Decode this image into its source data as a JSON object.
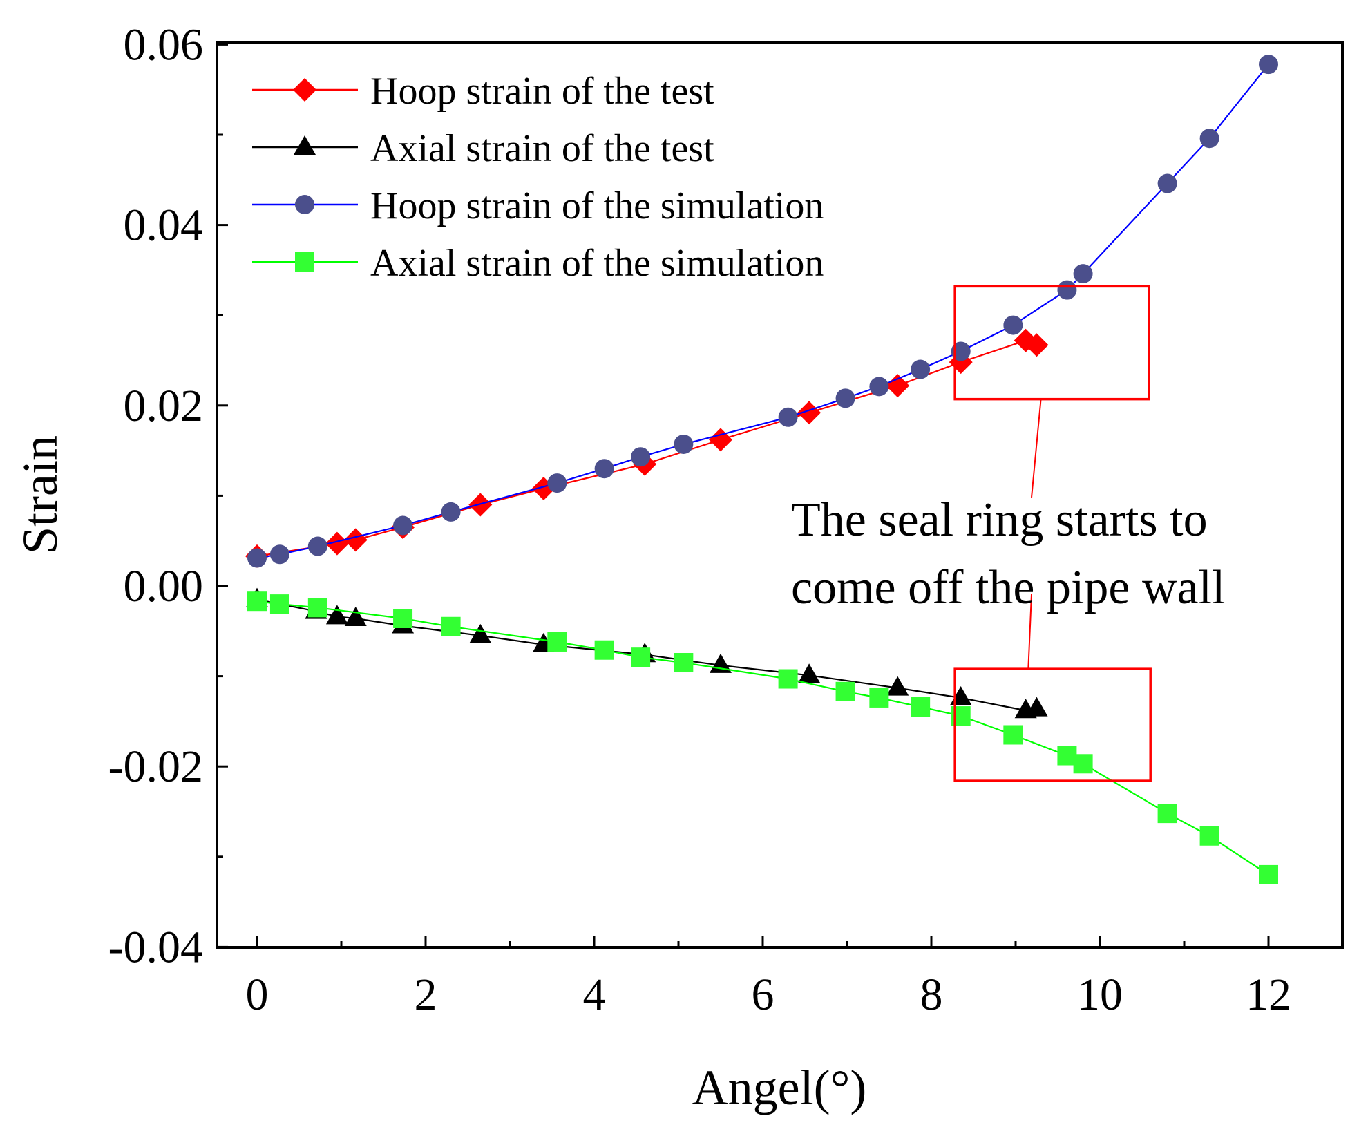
{
  "chart_data": {
    "type": "line",
    "title": "",
    "xlabel": "Angel(°)",
    "ylabel": "Strain",
    "xlim": [
      -0.5,
      13
    ],
    "ylim": [
      -0.04,
      0.06
    ],
    "xticks": [
      0,
      2,
      4,
      6,
      8,
      10,
      12
    ],
    "xtick_labels": [
      "0",
      "2",
      "4",
      "6",
      "8",
      "10",
      "12"
    ],
    "yticks": [
      -0.04,
      -0.02,
      0.0,
      0.02,
      0.04,
      0.06
    ],
    "ytick_labels": [
      "-0.04",
      "-0.02",
      "0.00",
      "0.02",
      "0.04",
      "0.06"
    ],
    "legend_position": "top-left",
    "series": [
      {
        "name": "Hoop strain of the test",
        "color": "#ff0000",
        "marker": "diamond",
        "x": [
          0,
          0.95,
          1.17,
          1.73,
          2.65,
          3.4,
          4.6,
          5.5,
          6.55,
          7.6,
          8.35,
          9.12,
          9.25
        ],
        "y": [
          0.0033,
          0.0047,
          0.0051,
          0.0065,
          0.009,
          0.0108,
          0.0135,
          0.0162,
          0.0192,
          0.0222,
          0.0248,
          0.0272,
          0.0267
        ]
      },
      {
        "name": "Axial strain of the test",
        "color": "#000000",
        "marker": "triangle",
        "x": [
          0,
          0.7,
          0.95,
          1.17,
          1.73,
          2.65,
          3.4,
          4.6,
          5.5,
          6.55,
          7.6,
          8.35,
          9.12,
          9.25
        ],
        "y": [
          -0.0015,
          -0.0028,
          -0.0034,
          -0.0036,
          -0.0044,
          -0.0055,
          -0.0065,
          -0.0076,
          -0.0088,
          -0.0099,
          -0.0113,
          -0.0124,
          -0.0138,
          -0.0136
        ]
      },
      {
        "name": "Hoop strain of the simulation",
        "color": "#0000ff",
        "marker_color": "#4b4f8c",
        "marker": "circle",
        "x": [
          0,
          0.27,
          0.72,
          1.73,
          2.3,
          3.56,
          4.12,
          4.55,
          5.06,
          6.3,
          6.98,
          7.38,
          7.87,
          8.35,
          8.97,
          9.61,
          9.8,
          10.8,
          11.3,
          12.0
        ],
        "y": [
          0.0031,
          0.0035,
          0.0044,
          0.0067,
          0.0082,
          0.0114,
          0.013,
          0.0143,
          0.0157,
          0.0187,
          0.0208,
          0.0221,
          0.024,
          0.026,
          0.0289,
          0.0328,
          0.0346,
          0.0446,
          0.0496,
          0.0578
        ]
      },
      {
        "name": "Axial strain of the simulation",
        "color": "#00ff00",
        "marker_color": "#33ff33",
        "marker": "square",
        "x": [
          0,
          0.27,
          0.72,
          1.73,
          2.3,
          3.56,
          4.12,
          4.55,
          5.06,
          6.3,
          6.98,
          7.38,
          7.87,
          8.35,
          8.97,
          9.61,
          9.8,
          10.8,
          11.3,
          12.0
        ],
        "y": [
          -0.0017,
          -0.002,
          -0.0024,
          -0.0036,
          -0.0045,
          -0.0062,
          -0.0071,
          -0.0079,
          -0.0085,
          -0.0103,
          -0.0117,
          -0.0124,
          -0.0134,
          -0.0144,
          -0.0165,
          -0.0188,
          -0.0197,
          -0.0252,
          -0.0277,
          -0.032
        ]
      }
    ],
    "annotation": {
      "lines": [
        "The seal ring starts to",
        "come off the pipe wall"
      ],
      "color": "#ff0000",
      "boxes": [
        {
          "x0": 8.28,
          "x1": 10.58,
          "y0": 0.0207,
          "y1": 0.0332
        },
        {
          "x0": 8.28,
          "x1": 10.6,
          "y0": -0.0216,
          "y1": -0.0092
        }
      ]
    }
  }
}
